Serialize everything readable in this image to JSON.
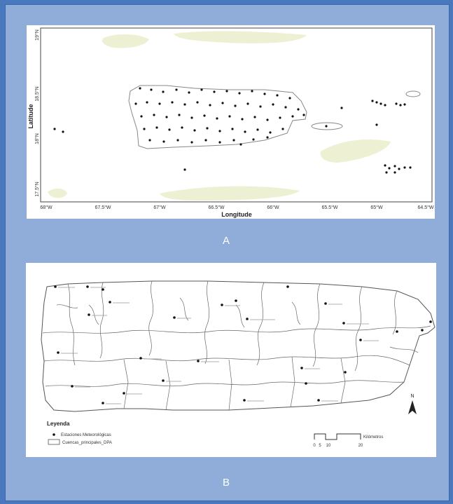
{
  "panel_a": {
    "letter": "A",
    "x_axis_label": "Longitude",
    "y_axis_label": "Latitude",
    "x_ticks": [
      "68°W",
      "67.5°W",
      "67°W",
      "66.5°W",
      "66°W",
      "65.5°W",
      "65°W",
      "64.5°W"
    ],
    "y_ticks": [
      "18.5°N",
      "18°N",
      "17.5°N"
    ],
    "y_top_tick": "19°N"
  },
  "panel_b": {
    "letter": "B",
    "legend_title": "Leyenda",
    "legend_items": [
      "Estaciones Meteorológicas",
      "Cuencas_principales_DPA"
    ],
    "scale_unit": "Kilómetros",
    "scale_ticks": [
      "0",
      "5",
      "10",
      "20"
    ],
    "north_label": "N"
  },
  "colors": {
    "outer_border": "#4a78be",
    "frame_fill": "#8fadd8",
    "land_tint": "#eef0d4",
    "station_dot": "#111111"
  }
}
